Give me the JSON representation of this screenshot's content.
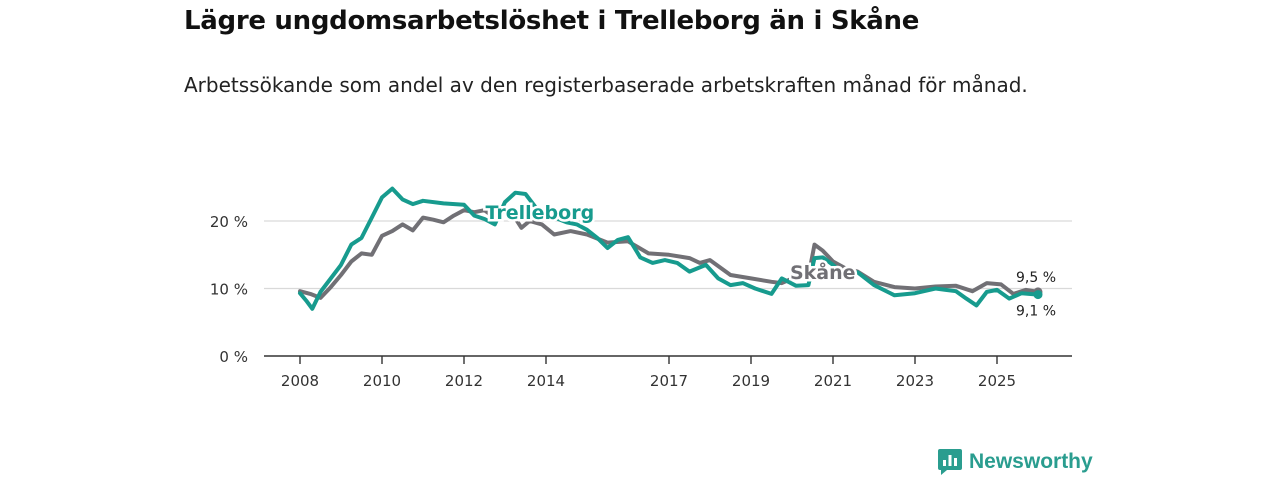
{
  "header": {
    "title": "Lägre ungdomsarbetslöshet i Trelleborg än i Skåne",
    "subtitle": "Arbetssökande som andel av den registerbaserade arbetskraften månad för månad."
  },
  "brand": {
    "name": "Newsworthy",
    "icon": "newsworthy-logo-icon",
    "color": "#2a9d8f"
  },
  "chart_data": {
    "type": "line",
    "title": "Lägre ungdomsarbetslöshet i Trelleborg än i Skåne",
    "subtitle": "Arbetssökande som andel av den registerbaserade arbetskraften månad för månad.",
    "xlabel": "",
    "ylabel": "",
    "xlim": [
      2007.5,
      2026.7
    ],
    "ylim": [
      0,
      25
    ],
    "x_ticks": [
      {
        "value": 2008,
        "label": "2008"
      },
      {
        "value": 2010,
        "label": "2010"
      },
      {
        "value": 2012,
        "label": "2012"
      },
      {
        "value": 2014,
        "label": "2014"
      },
      {
        "value": 2017,
        "label": "2017"
      },
      {
        "value": 2019,
        "label": "2019"
      },
      {
        "value": 2021,
        "label": "2021"
      },
      {
        "value": 2023,
        "label": "2023"
      },
      {
        "value": 2025,
        "label": "2025"
      }
    ],
    "y_ticks": [
      {
        "value": 0,
        "label": "0 %"
      },
      {
        "value": 10,
        "label": "10 %"
      },
      {
        "value": 20,
        "label": "20 %"
      }
    ],
    "grid": true,
    "legend": "inline labels",
    "series": [
      {
        "name": "Skåne",
        "color": "#717075",
        "end_label": "9,5 %",
        "points": [
          [
            2008.0,
            9.6
          ],
          [
            2008.25,
            9.2
          ],
          [
            2008.5,
            8.6
          ],
          [
            2008.75,
            10.2
          ],
          [
            2009.0,
            12.0
          ],
          [
            2009.25,
            14.0
          ],
          [
            2009.5,
            15.2
          ],
          [
            2009.75,
            15.0
          ],
          [
            2010.0,
            17.8
          ],
          [
            2010.25,
            18.5
          ],
          [
            2010.5,
            19.5
          ],
          [
            2010.75,
            18.6
          ],
          [
            2011.0,
            20.5
          ],
          [
            2011.25,
            20.2
          ],
          [
            2011.5,
            19.8
          ],
          [
            2011.75,
            20.8
          ],
          [
            2012.0,
            21.6
          ],
          [
            2012.25,
            21.3
          ],
          [
            2012.5,
            21.6
          ],
          [
            2012.75,
            20.5
          ],
          [
            2013.0,
            21.6
          ],
          [
            2013.25,
            20.4
          ],
          [
            2013.4,
            19.0
          ],
          [
            2013.6,
            20.0
          ],
          [
            2013.9,
            19.5
          ],
          [
            2014.2,
            18.0
          ],
          [
            2014.6,
            18.5
          ],
          [
            2015.0,
            18.0
          ],
          [
            2015.5,
            16.8
          ],
          [
            2016.0,
            17.0
          ],
          [
            2016.5,
            15.2
          ],
          [
            2017.0,
            15.0
          ],
          [
            2017.5,
            14.5
          ],
          [
            2017.75,
            13.8
          ],
          [
            2018.0,
            14.2
          ],
          [
            2018.5,
            12.0
          ],
          [
            2019.0,
            11.5
          ],
          [
            2019.5,
            11.0
          ],
          [
            2019.75,
            10.8
          ],
          [
            2020.2,
            12.0
          ],
          [
            2020.4,
            11.8
          ],
          [
            2020.55,
            16.5
          ],
          [
            2020.75,
            15.6
          ],
          [
            2021.0,
            14.0
          ],
          [
            2021.3,
            13.0
          ],
          [
            2021.6,
            12.5
          ],
          [
            2022.0,
            11.0
          ],
          [
            2022.5,
            10.2
          ],
          [
            2023.0,
            10.0
          ],
          [
            2023.5,
            10.3
          ],
          [
            2024.0,
            10.4
          ],
          [
            2024.4,
            9.6
          ],
          [
            2024.75,
            10.8
          ],
          [
            2025.1,
            10.6
          ],
          [
            2025.4,
            9.2
          ],
          [
            2025.7,
            9.8
          ],
          [
            2026.0,
            9.5
          ]
        ]
      },
      {
        "name": "Trelleborg",
        "color": "#179b8e",
        "end_label": "9,1 %",
        "points": [
          [
            2008.0,
            9.3
          ],
          [
            2008.15,
            8.2
          ],
          [
            2008.3,
            7.0
          ],
          [
            2008.5,
            9.5
          ],
          [
            2008.75,
            11.5
          ],
          [
            2009.0,
            13.5
          ],
          [
            2009.25,
            16.5
          ],
          [
            2009.5,
            17.5
          ],
          [
            2009.75,
            20.5
          ],
          [
            2010.0,
            23.5
          ],
          [
            2010.25,
            24.8
          ],
          [
            2010.5,
            23.2
          ],
          [
            2010.75,
            22.5
          ],
          [
            2011.0,
            23.0
          ],
          [
            2011.5,
            22.6
          ],
          [
            2012.0,
            22.4
          ],
          [
            2012.25,
            20.8
          ],
          [
            2012.5,
            20.3
          ],
          [
            2012.75,
            19.5
          ],
          [
            2013.0,
            22.8
          ],
          [
            2013.25,
            24.2
          ],
          [
            2013.5,
            24.0
          ],
          [
            2013.75,
            22.0
          ],
          [
            2014.0,
            21.5
          ],
          [
            2014.25,
            20.4
          ],
          [
            2014.5,
            19.8
          ],
          [
            2014.75,
            19.5
          ],
          [
            2015.0,
            18.7
          ],
          [
            2015.25,
            17.5
          ],
          [
            2015.5,
            16.0
          ],
          [
            2015.75,
            17.2
          ],
          [
            2016.0,
            17.6
          ],
          [
            2016.3,
            14.6
          ],
          [
            2016.6,
            13.8
          ],
          [
            2016.9,
            14.2
          ],
          [
            2017.2,
            13.8
          ],
          [
            2017.5,
            12.5
          ],
          [
            2017.9,
            13.5
          ],
          [
            2018.2,
            11.5
          ],
          [
            2018.5,
            10.5
          ],
          [
            2018.8,
            10.8
          ],
          [
            2019.1,
            10.0
          ],
          [
            2019.5,
            9.2
          ],
          [
            2019.75,
            11.5
          ],
          [
            2020.1,
            10.4
          ],
          [
            2020.4,
            10.5
          ],
          [
            2020.55,
            14.5
          ],
          [
            2020.75,
            14.6
          ],
          [
            2021.0,
            13.5
          ],
          [
            2021.3,
            12.0
          ],
          [
            2021.6,
            12.4
          ],
          [
            2022.0,
            10.5
          ],
          [
            2022.5,
            9.0
          ],
          [
            2023.0,
            9.3
          ],
          [
            2023.5,
            10.0
          ],
          [
            2023.75,
            9.8
          ],
          [
            2024.0,
            9.6
          ],
          [
            2024.25,
            8.5
          ],
          [
            2024.5,
            7.5
          ],
          [
            2024.75,
            9.5
          ],
          [
            2025.0,
            9.8
          ],
          [
            2025.3,
            8.5
          ],
          [
            2025.6,
            9.3
          ],
          [
            2026.0,
            9.1
          ]
        ]
      }
    ],
    "annotations": [
      {
        "text": "Trelleborg",
        "series": "Trelleborg"
      },
      {
        "text": "Skåne",
        "series": "Skåne"
      }
    ]
  }
}
